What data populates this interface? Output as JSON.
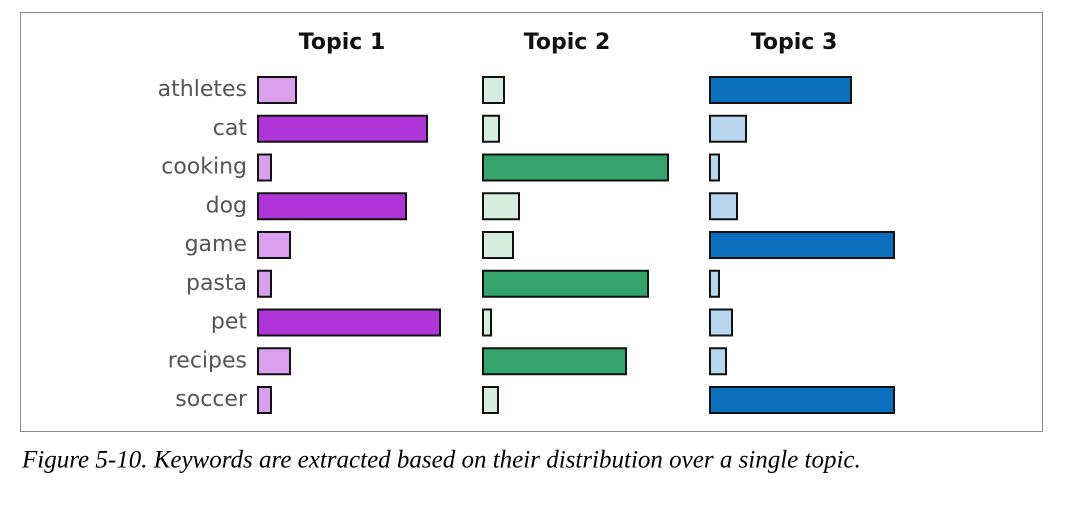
{
  "chart_data": {
    "type": "bar",
    "orientation": "horizontal",
    "categories": [
      "athletes",
      "cat",
      "cooking",
      "dog",
      "game",
      "pasta",
      "pet",
      "recipes",
      "soccer"
    ],
    "series": [
      {
        "name": "Topic 1",
        "values": [
          38,
          169,
          13,
          148,
          32,
          13,
          182,
          32,
          13
        ],
        "colors": [
          "#d9a0ee",
          "#b035d9",
          "#d9a0ee",
          "#b035d9",
          "#d9a0ee",
          "#d9a0ee",
          "#b035d9",
          "#d9a0ee",
          "#d9a0ee"
        ]
      },
      {
        "name": "Topic 2",
        "values": [
          21,
          16,
          185,
          36,
          30,
          165,
          8,
          143,
          15
        ],
        "colors": [
          "#d4eddf",
          "#d4eddf",
          "#34a46a",
          "#d4eddf",
          "#d4eddf",
          "#34a46a",
          "#d4eddf",
          "#34a46a",
          "#d4eddf"
        ]
      },
      {
        "name": "Topic 3",
        "values": [
          141,
          36,
          9,
          27,
          184,
          9,
          22,
          16,
          184
        ],
        "colors": [
          "#0a6fbd",
          "#b8d7ee",
          "#b8d7ee",
          "#b8d7ee",
          "#0a6fbd",
          "#b8d7ee",
          "#b8d7ee",
          "#b8d7ee",
          "#0a6fbd"
        ]
      }
    ]
  },
  "figure": {
    "caption": "Figure 5-10. Keywords are extracted based on their distribution over a single topic."
  }
}
